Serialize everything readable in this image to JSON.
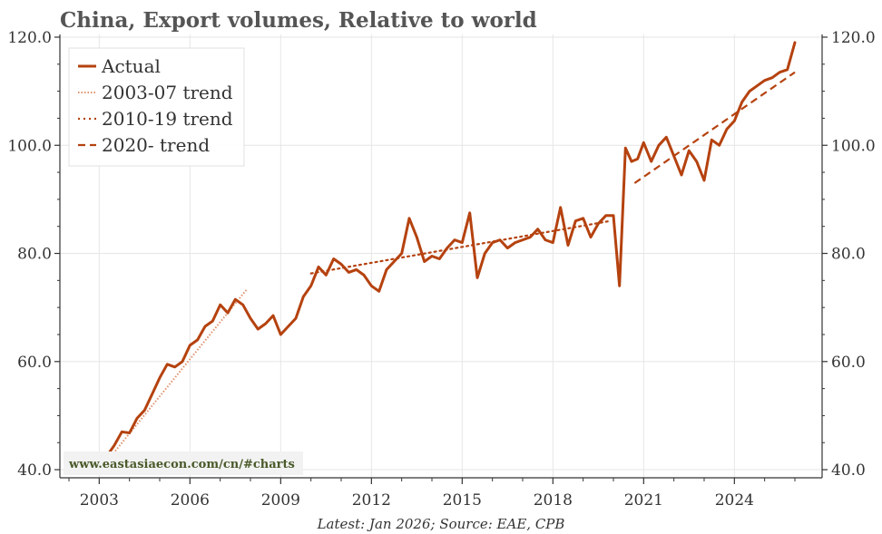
{
  "chart_data": {
    "type": "line",
    "title": "China, Export volumes, Relative to world",
    "source": "Latest: Jan 2026; Source: EAE, CPB",
    "watermark": "www.eastasiaecon.com/cn/#charts",
    "xlabel": "",
    "ylabel": "",
    "xlim": [
      2001.7,
      2026.9
    ],
    "ylim": [
      38.5,
      120.5
    ],
    "x_ticks": [
      2003,
      2006,
      2009,
      2012,
      2015,
      2018,
      2021,
      2024
    ],
    "x_tick_labels": [
      "2003",
      "2006",
      "2009",
      "2012",
      "2015",
      "2018",
      "2021",
      "2024"
    ],
    "y_ticks": [
      40,
      60,
      80,
      100,
      120
    ],
    "y_tick_labels": [
      "40.0",
      "60.0",
      "80.0",
      "100.0",
      "120.0"
    ],
    "grid": true,
    "legend_position": "top-left",
    "colors": {
      "actual": "#b5420f",
      "trend_2003": "#e0906a",
      "trend_2010": "#b5420f",
      "trend_2020": "#b5420f",
      "grid": "#e6e6e6",
      "axis": "#333333",
      "watermark_bg": "#f2f2f2"
    },
    "series": [
      {
        "name": "Actual",
        "style": "solid",
        "x": [
          2003.0,
          2003.25,
          2003.5,
          2003.75,
          2004.0,
          2004.25,
          2004.5,
          2004.75,
          2005.0,
          2005.25,
          2005.5,
          2005.75,
          2006.0,
          2006.25,
          2006.5,
          2006.75,
          2007.0,
          2007.25,
          2007.5,
          2007.75,
          2008.0,
          2008.25,
          2008.5,
          2008.75,
          2009.0,
          2009.25,
          2009.5,
          2009.75,
          2010.0,
          2010.25,
          2010.5,
          2010.75,
          2011.0,
          2011.25,
          2011.5,
          2011.75,
          2012.0,
          2012.25,
          2012.5,
          2012.75,
          2013.0,
          2013.25,
          2013.5,
          2013.75,
          2014.0,
          2014.25,
          2014.5,
          2014.75,
          2015.0,
          2015.25,
          2015.5,
          2015.75,
          2016.0,
          2016.25,
          2016.5,
          2016.75,
          2017.0,
          2017.25,
          2017.5,
          2017.75,
          2018.0,
          2018.25,
          2018.5,
          2018.75,
          2019.0,
          2019.25,
          2019.5,
          2019.75,
          2020.0,
          2020.2,
          2020.4,
          2020.6,
          2020.8,
          2021.0,
          2021.25,
          2021.5,
          2021.75,
          2022.0,
          2022.25,
          2022.5,
          2022.75,
          2023.0,
          2023.25,
          2023.5,
          2023.75,
          2024.0,
          2024.25,
          2024.5,
          2024.75,
          2025.0,
          2025.25,
          2025.5,
          2025.75,
          2026.0
        ],
        "values": [
          40.5,
          42.5,
          44.5,
          47.0,
          46.8,
          49.5,
          51.0,
          54.0,
          57.0,
          59.5,
          59.0,
          60.0,
          63.0,
          64.0,
          66.5,
          67.5,
          70.5,
          69.0,
          71.5,
          70.5,
          68.0,
          66.0,
          67.0,
          68.5,
          65.0,
          66.5,
          68.0,
          72.0,
          74.0,
          77.5,
          76.0,
          79.0,
          78.0,
          76.5,
          77.0,
          76.0,
          74.0,
          73.0,
          77.0,
          78.5,
          80.0,
          86.5,
          83.0,
          78.5,
          79.5,
          79.0,
          81.0,
          82.5,
          82.0,
          87.5,
          75.5,
          80.0,
          82.0,
          82.5,
          81.0,
          82.0,
          82.5,
          83.0,
          84.5,
          82.5,
          82.0,
          88.5,
          81.5,
          86.0,
          86.5,
          83.0,
          85.5,
          87.0,
          87.0,
          74.0,
          99.5,
          97.0,
          97.5,
          100.5,
          97.0,
          100.0,
          101.5,
          98.0,
          94.5,
          99.0,
          97.0,
          93.5,
          101.0,
          100.0,
          103.0,
          104.5,
          108.0,
          110.0,
          111.0,
          112.0,
          112.5,
          113.5,
          114.0,
          119.0
        ]
      },
      {
        "name": "2003-07 trend",
        "style": "dotted-fine",
        "x": [
          2003.0,
          2007.9
        ],
        "values": [
          39.8,
          73.5
        ]
      },
      {
        "name": "2010-19 trend",
        "style": "dotted",
        "x": [
          2010.0,
          2019.9
        ],
        "values": [
          76.3,
          86.0
        ]
      },
      {
        "name": "2020- trend",
        "style": "dashed",
        "x": [
          2020.7,
          2026.0
        ],
        "values": [
          93.0,
          113.5
        ]
      }
    ]
  }
}
